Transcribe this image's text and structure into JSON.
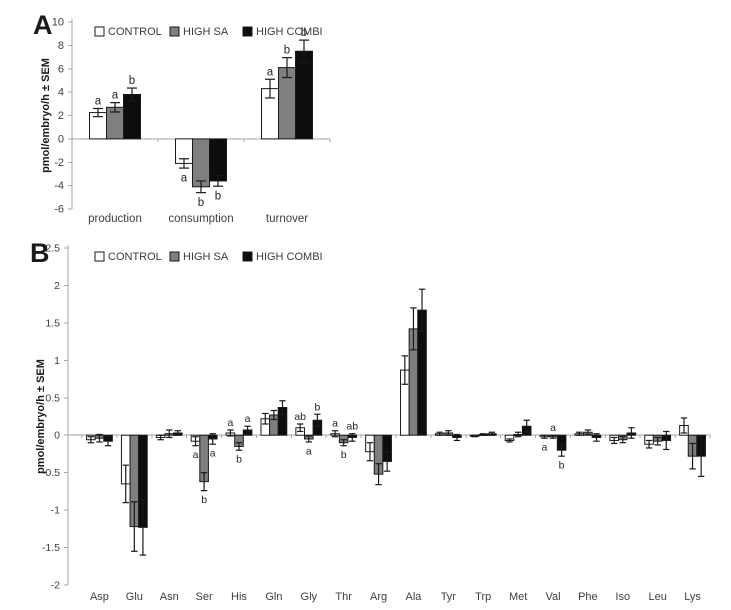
{
  "figure": {
    "panel_a_letter": "A",
    "panel_b_letter": "B"
  },
  "chart_data": [
    {
      "type": "bar",
      "panel_label": "A",
      "title": "",
      "ylabel": "pmol/embryo/h ± SEM",
      "xlabel": "",
      "ylim": [
        -6,
        10
      ],
      "grid": false,
      "legend_position": "top-inside",
      "ytick_values": [
        10,
        8,
        6,
        4,
        2,
        0,
        -2,
        -4,
        -6
      ],
      "ytick_labels": [
        "10",
        "8",
        "6",
        "4",
        "2",
        "0",
        "-2",
        "-4",
        "-6"
      ],
      "categories": [
        "production",
        "consumption",
        "turnover"
      ],
      "series": [
        {
          "name": "CONTROL",
          "fill": "#ffffff",
          "values": [
            2.25,
            -2.1,
            4.3
          ],
          "errors": [
            0.35,
            0.4,
            0.8
          ]
        },
        {
          "name": "HIGH SA",
          "fill": "#7f7f7f",
          "values": [
            2.7,
            -4.1,
            6.1
          ],
          "errors": [
            0.4,
            0.5,
            0.85
          ]
        },
        {
          "name": "HIGH COMBI",
          "fill": "#0d0d0d",
          "values": [
            3.8,
            -3.6,
            7.5
          ],
          "errors": [
            0.55,
            0.45,
            0.95
          ]
        }
      ],
      "annotations": [
        {
          "category": "production",
          "series": "CONTROL",
          "text": "a",
          "side": "above"
        },
        {
          "category": "production",
          "series": "HIGH SA",
          "text": "a",
          "side": "above"
        },
        {
          "category": "production",
          "series": "HIGH COMBI",
          "text": "b",
          "side": "above"
        },
        {
          "category": "consumption",
          "series": "CONTROL",
          "text": "a",
          "side": "below"
        },
        {
          "category": "consumption",
          "series": "HIGH SA",
          "text": "b",
          "side": "below"
        },
        {
          "category": "consumption",
          "series": "HIGH COMBI",
          "text": "b",
          "side": "below"
        },
        {
          "category": "turnover",
          "series": "CONTROL",
          "text": "a",
          "side": "above"
        },
        {
          "category": "turnover",
          "series": "HIGH SA",
          "text": "b",
          "side": "above"
        },
        {
          "category": "turnover",
          "series": "HIGH COMBI",
          "text": "b",
          "side": "above"
        }
      ]
    },
    {
      "type": "bar",
      "panel_label": "B",
      "title": "",
      "ylabel": "pmol/embryo/h ± SEM",
      "xlabel": "",
      "ylim": [
        -2,
        2.5
      ],
      "grid": false,
      "legend_position": "top-inside",
      "ytick_values": [
        2.5,
        2,
        1.5,
        1,
        0.5,
        0,
        -0.5,
        -1,
        -1.5,
        -2
      ],
      "ytick_labels": [
        "2.5",
        "2",
        "1.5",
        "1",
        "0.5",
        "0",
        "-0.5",
        "-1",
        "-1.5",
        "-2"
      ],
      "categories": [
        "Asp",
        "Glu",
        "Asn",
        "Ser",
        "His",
        "Gln",
        "Gly",
        "Thr",
        "Arg",
        "Ala",
        "Tyr",
        "Trp",
        "Met",
        "Val",
        "Phe",
        "Iso",
        "Leu",
        "Lys"
      ],
      "series": [
        {
          "name": "CONTROL",
          "fill": "#ffffff",
          "values": [
            -0.06,
            -0.65,
            -0.03,
            -0.08,
            0.03,
            0.22,
            0.1,
            0.02,
            -0.22,
            0.87,
            0.02,
            -0.01,
            -0.07,
            -0.02,
            0.02,
            -0.07,
            -0.12,
            0.13
          ],
          "errors": [
            0.04,
            0.25,
            0.03,
            0.06,
            0.04,
            0.07,
            0.05,
            0.04,
            0.12,
            0.19,
            0.02,
            0.01,
            0.02,
            0.02,
            0.02,
            0.04,
            0.05,
            0.1
          ]
        },
        {
          "name": "HIGH SA",
          "fill": "#7f7f7f",
          "values": [
            -0.04,
            -1.22,
            0.02,
            -0.62,
            -0.15,
            0.27,
            -0.05,
            -0.1,
            -0.52,
            1.42,
            0.03,
            0.01,
            0.01,
            -0.02,
            0.04,
            -0.06,
            -0.08,
            -0.28
          ],
          "errors": [
            0.05,
            0.33,
            0.05,
            0.12,
            0.05,
            0.06,
            0.04,
            0.04,
            0.14,
            0.28,
            0.03,
            0.01,
            0.03,
            0.02,
            0.03,
            0.04,
            0.05,
            0.17
          ]
        },
        {
          "name": "HIGH COMBI",
          "fill": "#0d0d0d",
          "values": [
            -0.08,
            -1.23,
            0.03,
            -0.05,
            0.07,
            0.37,
            0.2,
            -0.03,
            -0.35,
            1.67,
            -0.03,
            0.02,
            0.12,
            -0.2,
            -0.03,
            0.03,
            -0.07,
            -0.28
          ],
          "errors": [
            0.06,
            0.37,
            0.03,
            0.07,
            0.05,
            0.09,
            0.08,
            0.05,
            0.13,
            0.28,
            0.04,
            0.02,
            0.08,
            0.08,
            0.05,
            0.07,
            0.12,
            0.27
          ]
        }
      ],
      "annotations": [
        {
          "category": "Ser",
          "series": "CONTROL",
          "text": "a",
          "side": "below"
        },
        {
          "category": "Ser",
          "series": "HIGH SA",
          "text": "b",
          "side": "below"
        },
        {
          "category": "Ser",
          "series": "HIGH COMBI",
          "text": "a",
          "side": "below"
        },
        {
          "category": "His",
          "series": "CONTROL",
          "text": "a",
          "side": "above"
        },
        {
          "category": "His",
          "series": "HIGH SA",
          "text": "b",
          "side": "below"
        },
        {
          "category": "His",
          "series": "HIGH COMBI",
          "text": "a",
          "side": "above"
        },
        {
          "category": "Gly",
          "series": "CONTROL",
          "text": "ab",
          "side": "above"
        },
        {
          "category": "Gly",
          "series": "HIGH SA",
          "text": "a",
          "side": "below"
        },
        {
          "category": "Gly",
          "series": "HIGH COMBI",
          "text": "b",
          "side": "above"
        },
        {
          "category": "Thr",
          "series": "CONTROL",
          "text": "a",
          "side": "above"
        },
        {
          "category": "Thr",
          "series": "HIGH SA",
          "text": "b",
          "side": "below"
        },
        {
          "category": "Thr",
          "series": "HIGH COMBI",
          "text": "ab",
          "side": "above"
        },
        {
          "category": "Val",
          "series": "CONTROL",
          "text": "a",
          "side": "below"
        },
        {
          "category": "Val",
          "series": "HIGH SA",
          "text": "a",
          "side": "above"
        },
        {
          "category": "Val",
          "series": "HIGH COMBI",
          "text": "b",
          "side": "below"
        }
      ]
    }
  ],
  "colors": {
    "axis": "#a6a6a6",
    "tick_text": "#404040",
    "bar_outline": "#1a1a1a",
    "error_bar": "#1a1a1a",
    "letter_text": "#262626",
    "legend_text": "#3d3d3d"
  }
}
